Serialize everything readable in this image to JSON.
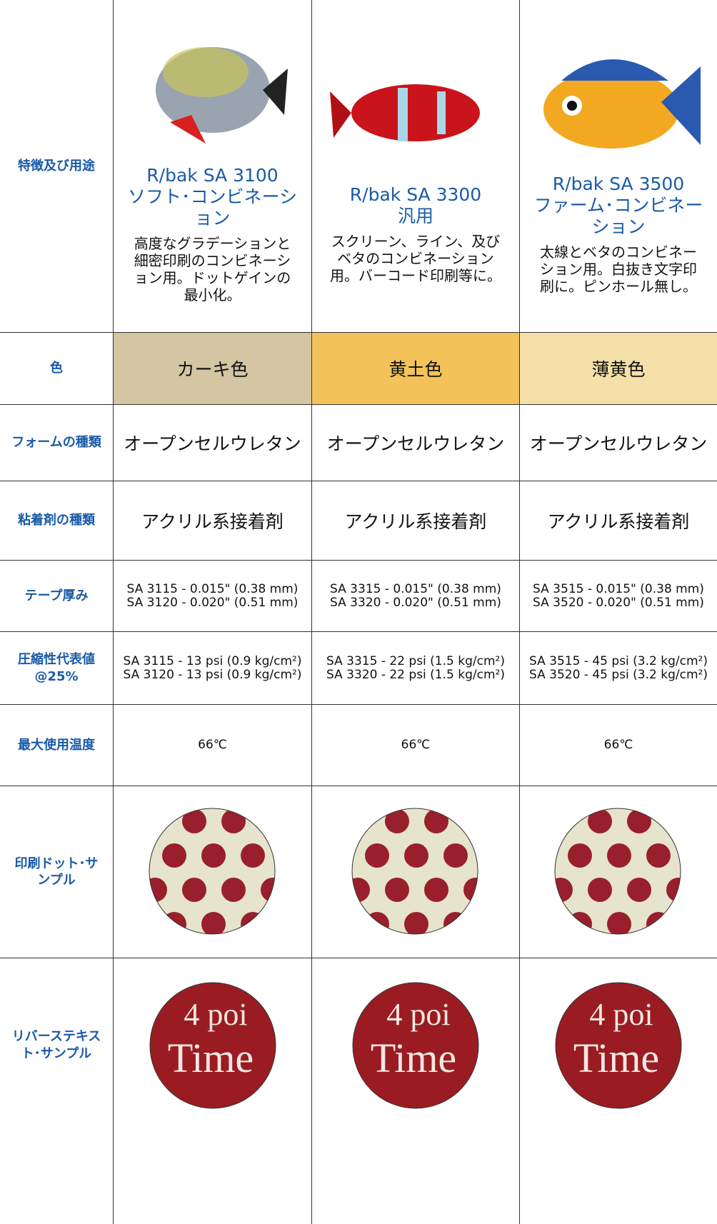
{
  "table": {
    "products": [
      {
        "name": "R/bak SA 3100",
        "kind": "ソフト･コンビネーション",
        "description": "高度なグラデーションと細密印刷のコンビネーション用。ドットゲインの最小化。"
      },
      {
        "name": "R/bak SA 3300",
        "kind": "汎用",
        "description": "スクリーン、ライン、及びベタのコンビネーション用。バーコード印刷等に。"
      },
      {
        "name": "R/bak SA 3500",
        "kind": "ファーム･コンビネーション",
        "description": "太線とベタのコンビネーション用。白抜き文字印刷に。ピンホール無し。"
      }
    ],
    "rows": [
      {
        "label": "特徴及び用途"
      },
      {
        "label": "色",
        "cells": [
          "カーキ色",
          "黄土色",
          "薄黄色"
        ]
      },
      {
        "label": "フォームの種類",
        "cells": [
          "オープンセルウレタン",
          "オープンセルウレタン",
          "オープンセルウレタン"
        ]
      },
      {
        "label": "粘着剤の種類",
        "cells": [
          "アクリル系接着剤",
          "アクリル系接着剤",
          "アクリル系接着剤"
        ]
      },
      {
        "label": "テープ厚み",
        "cells": [
          [
            "SA 3115 - 0.015\" (0.38 mm)",
            "SA 3120 - 0.020\" (0.51 mm)"
          ],
          [
            "SA 3315 - 0.015\" (0.38 mm)",
            "SA 3320 - 0.020\" (0.51 mm)"
          ],
          [
            "SA 3515 - 0.015\" (0.38 mm)",
            "SA 3520 - 0.020\" (0.51 mm)"
          ]
        ]
      },
      {
        "label": "圧縮性代表値@25%",
        "cells": [
          [
            "SA 3115 - 13 psi (0.9 kg/cm²)",
            "SA 3120 - 13 psi (0.9 kg/cm²)"
          ],
          [
            "SA 3315 - 22 psi (1.5 kg/cm²)",
            "SA 3320 - 22 psi (1.5 kg/cm²)"
          ],
          [
            "SA 3515 - 45 psi (3.2 kg/cm²)",
            "SA 3520 - 45 psi (3.2 kg/cm²)"
          ]
        ]
      },
      {
        "label": "最大使用温度",
        "cells": [
          "66℃",
          "66℃",
          "66℃"
        ]
      },
      {
        "label": "印刷ドット･サンプル"
      },
      {
        "label": "リバーステキスト･サンプル",
        "sample_text": [
          "4 poi",
          "Time"
        ]
      }
    ]
  }
}
